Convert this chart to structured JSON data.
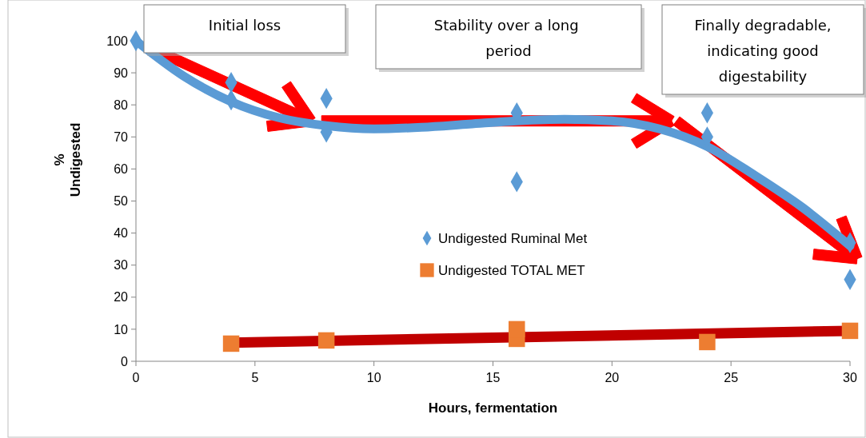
{
  "chart_data": {
    "type": "scatter",
    "xlabel": "Hours, fermentation",
    "ylabel": "% Undigested",
    "xlim": [
      0,
      30
    ],
    "xticks": [
      0,
      5,
      10,
      15,
      20,
      25,
      30
    ],
    "ylim": [
      0,
      100
    ],
    "yticks": [
      0,
      10,
      20,
      30,
      40,
      50,
      60,
      70,
      80,
      90,
      100
    ],
    "legend": "center",
    "grid": false,
    "annotations": [
      "Initial loss",
      "Stability over a long  period",
      "Finally degradable, indicating good digestability"
    ],
    "series": [
      {
        "type": "line",
        "color": "#5b9bd5",
        "x": [
          0,
          2,
          4,
          6,
          8,
          10,
          12,
          14,
          16,
          18,
          20,
          22,
          24,
          26,
          28,
          30
        ],
        "values": [
          100,
          89,
          81,
          76,
          73.5,
          72.5,
          73,
          74,
          75,
          75.5,
          75,
          72.5,
          67,
          58,
          48,
          36
        ]
      },
      {
        "type": "line",
        "color": "#c00000",
        "x": [
          4,
          30
        ],
        "values": [
          5.8,
          9.5
        ]
      },
      {
        "name": "Undigested Ruminal Met",
        "marker": "diamond",
        "color": "#5b9bd5",
        "x": [
          0,
          4,
          4,
          8,
          8,
          16,
          16,
          24,
          24,
          30,
          30
        ],
        "values": [
          100,
          87,
          81.5,
          82,
          71.5,
          77.5,
          56,
          77.5,
          70,
          37,
          25.5
        ]
      },
      {
        "name": "Undigested TOTAL MET",
        "marker": "square",
        "color": "#ed7d31",
        "x": [
          4,
          8,
          16,
          16,
          24,
          30
        ],
        "values": [
          5.5,
          6.5,
          7,
          10,
          6,
          9.5
        ]
      }
    ]
  }
}
